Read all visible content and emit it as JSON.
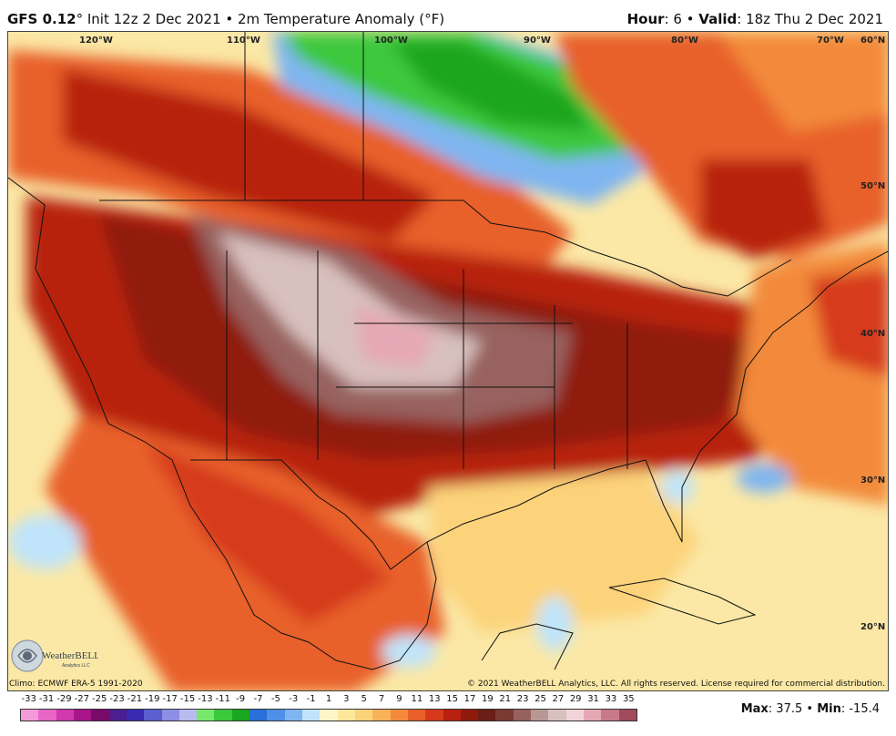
{
  "header": {
    "model": "GFS 0.12",
    "init_text": "° Init 12z 2 Dec 2021 • 2m Temperature Anomaly (°F)",
    "hour_label": "Hour",
    "hour_value": ": 6 • ",
    "valid_label": "Valid",
    "valid_value": ": 18z Thu 2 Dec 2021"
  },
  "map": {
    "longitude_labels": [
      "120°W",
      "110°W",
      "100°W",
      "90°W",
      "80°W",
      "70°W"
    ],
    "latitude_labels": [
      "60°N",
      "50°N",
      "40°N",
      "30°N",
      "20°N"
    ]
  },
  "footer": {
    "climo": "Climo: ECMWF ERA-5 1991-2020",
    "copyright": "© 2021 WeatherBELL Analytics, LLC. All rights reserved. License required for commercial distribution.",
    "logo_text": "WeatherBELL",
    "logo_subtext": "Analytics LLC"
  },
  "legend": {
    "ticks": [
      "-33",
      "-31",
      "-29",
      "-27",
      "-25",
      "-23",
      "-21",
      "-19",
      "-17",
      "-15",
      "-13",
      "-11",
      "-9",
      "-7",
      "-5",
      "-3",
      "-1",
      "1",
      "3",
      "5",
      "7",
      "9",
      "11",
      "13",
      "15",
      "17",
      "19",
      "21",
      "23",
      "25",
      "27",
      "29",
      "31",
      "33",
      "35"
    ],
    "colors": [
      "#f39bd8",
      "#e866c6",
      "#d03aae",
      "#a8168a",
      "#7a0a6a",
      "#4b1f8f",
      "#3a2ab0",
      "#5a5fd0",
      "#8c8fe3",
      "#b7bbf0",
      "#77e86c",
      "#3cc83c",
      "#1aa61f",
      "#2a6fd8",
      "#4f8fe8",
      "#7fb5f0",
      "#bfe4fb",
      "#fff6c8",
      "#ffe89a",
      "#fcd37a",
      "#f8b25a",
      "#f38a3b",
      "#e8602a",
      "#d63a1a",
      "#b8200f",
      "#8f1a0c",
      "#6a1e16",
      "#7a3a34",
      "#97625e",
      "#b89894",
      "#d8c0be",
      "#f0d4d8",
      "#e6a8b4",
      "#c97a8a",
      "#a14a5a"
    ],
    "max_label": "Max",
    "max_value": ": 37.5 • ",
    "min_label": "Min",
    "min_value": ": -15.4"
  }
}
